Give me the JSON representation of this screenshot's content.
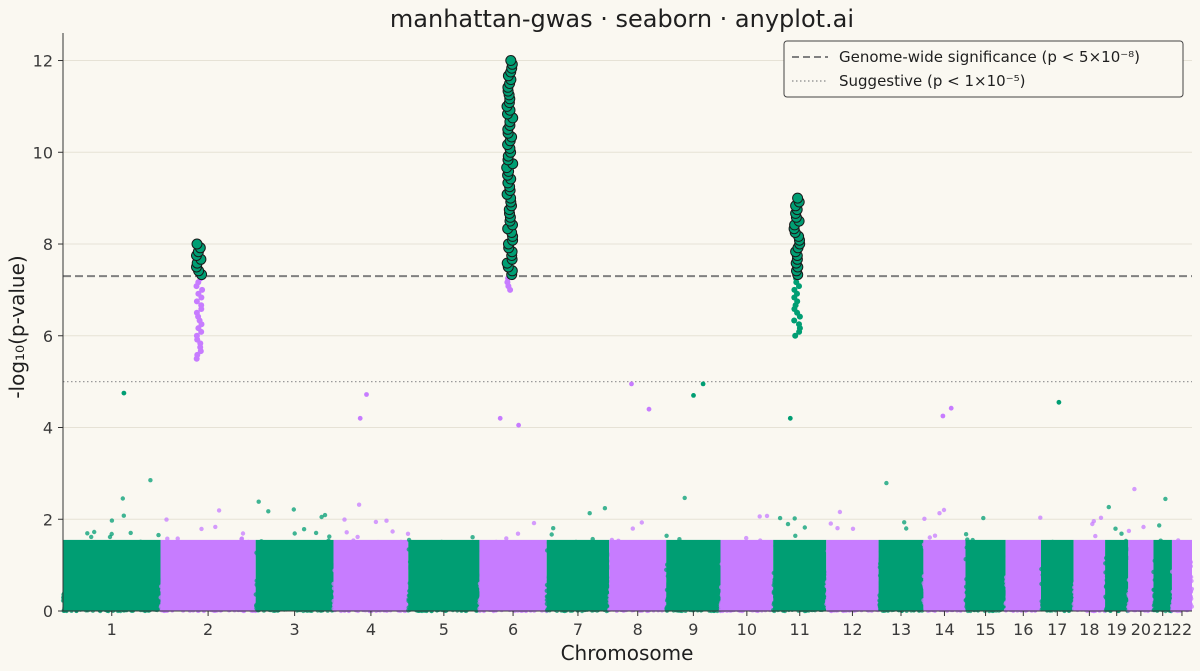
{
  "chart_data": {
    "type": "scatter",
    "subtype": "manhattan",
    "title": "manhattan-gwas · seaborn · anyplot.ai",
    "xlabel": "Chromosome",
    "ylabel": "-log₁₀(p-value)",
    "ylim": [
      0,
      12.6
    ],
    "yticks": [
      0,
      2,
      4,
      6,
      8,
      10,
      12
    ],
    "grid": "horizontal",
    "chromosomes": [
      {
        "label": "1",
        "length": 248,
        "color": "#009E73"
      },
      {
        "label": "2",
        "length": 242,
        "color": "#C77CFF"
      },
      {
        "label": "3",
        "length": 198,
        "color": "#009E73"
      },
      {
        "label": "4",
        "length": 190,
        "color": "#C77CFF"
      },
      {
        "label": "5",
        "length": 181,
        "color": "#009E73"
      },
      {
        "label": "6",
        "length": 171,
        "color": "#C77CFF"
      },
      {
        "label": "7",
        "length": 159,
        "color": "#009E73"
      },
      {
        "label": "8",
        "length": 145,
        "color": "#C77CFF"
      },
      {
        "label": "9",
        "length": 138,
        "color": "#009E73"
      },
      {
        "label": "10",
        "length": 134,
        "color": "#C77CFF"
      },
      {
        "label": "11",
        "length": 135,
        "color": "#009E73"
      },
      {
        "label": "12",
        "length": 133,
        "color": "#C77CFF"
      },
      {
        "label": "13",
        "length": 114,
        "color": "#009E73"
      },
      {
        "label": "14",
        "length": 107,
        "color": "#C77CFF"
      },
      {
        "label": "15",
        "length": 102,
        "color": "#009E73"
      },
      {
        "label": "16",
        "length": 90,
        "color": "#C77CFF"
      },
      {
        "label": "17",
        "length": 83,
        "color": "#009E73"
      },
      {
        "label": "18",
        "length": 80,
        "color": "#C77CFF"
      },
      {
        "label": "19",
        "length": 59,
        "color": "#009E73"
      },
      {
        "label": "20",
        "length": 64,
        "color": "#C77CFF"
      },
      {
        "label": "21",
        "length": 47,
        "color": "#009E73"
      },
      {
        "label": "22",
        "length": 51,
        "color": "#C77CFF"
      }
    ],
    "thresholds": [
      {
        "name": "Genome-wide significance (p < 5×10⁻⁸)",
        "value": 7.3,
        "style": "dashed",
        "color": "#808080"
      },
      {
        "name": "Suggestive (p < 1×10⁻⁵)",
        "value": 5.0,
        "style": "dotted",
        "color": "#9a9a9a"
      }
    ],
    "peaks": [
      {
        "chromosome": "2",
        "min_y": 5.5,
        "max_y": 8.0
      },
      {
        "chromosome": "6",
        "min_y": 7.0,
        "max_y": 12.0
      },
      {
        "chromosome": "11",
        "min_y": 6.0,
        "max_y": 9.0
      }
    ],
    "notable_points": [
      {
        "chromosome": "1",
        "y": 4.75
      },
      {
        "chromosome": "4",
        "y": 4.2
      },
      {
        "chromosome": "4",
        "y": 4.72
      },
      {
        "chromosome": "6",
        "y": 4.05
      },
      {
        "chromosome": "6",
        "y": 4.2
      },
      {
        "chromosome": "8",
        "y": 4.95
      },
      {
        "chromosome": "8",
        "y": 4.4
      },
      {
        "chromosome": "9",
        "y": 4.7
      },
      {
        "chromosome": "9",
        "y": 4.95
      },
      {
        "chromosome": "11",
        "y": 4.2
      },
      {
        "chromosome": "14",
        "y": 4.25
      },
      {
        "chromosome": "14",
        "y": 4.42
      },
      {
        "chromosome": "17",
        "y": 4.55
      }
    ],
    "colors": {
      "even": "#009E73",
      "odd": "#C77CFF",
      "significant_edge": "#1a1a1a"
    },
    "legend_position": "top-right"
  }
}
